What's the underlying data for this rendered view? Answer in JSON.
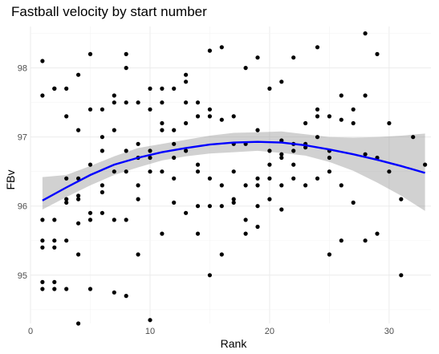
{
  "chart_data": {
    "type": "scatter",
    "title": "Fastball velocity by start number",
    "xlabel": "Rank",
    "ylabel": "FBv",
    "xlim": [
      0,
      33.5
    ],
    "ylim": [
      94.3,
      98.6
    ],
    "x_ticks": [
      0,
      10,
      20,
      30
    ],
    "y_ticks": [
      95,
      96,
      97,
      98
    ],
    "grid": true,
    "legend": "none",
    "colors": {
      "points": "#000000",
      "smooth_line": "#0000ff",
      "ribbon": "#999999"
    },
    "points": [
      [
        1,
        98.1
      ],
      [
        1,
        97.6
      ],
      [
        1,
        95.8
      ],
      [
        1,
        95.5
      ],
      [
        1,
        95.4
      ],
      [
        1,
        94.9
      ],
      [
        1,
        94.8
      ],
      [
        2,
        97.7
      ],
      [
        2,
        97.7
      ],
      [
        2,
        95.8
      ],
      [
        2,
        95.5
      ],
      [
        2,
        95.4
      ],
      [
        2,
        94.9
      ],
      [
        2,
        94.8
      ],
      [
        3,
        97.7
      ],
      [
        3,
        97.3
      ],
      [
        3,
        96.4
      ],
      [
        3,
        96.1
      ],
      [
        3,
        96.05
      ],
      [
        3,
        95.5
      ],
      [
        3,
        94.8
      ],
      [
        4,
        97.9
      ],
      [
        4,
        97.1
      ],
      [
        4,
        96.4
      ],
      [
        4,
        96.15
      ],
      [
        4,
        96.1
      ],
      [
        4,
        95.75
      ],
      [
        4,
        95.3
      ],
      [
        4,
        94.3
      ],
      [
        5,
        98.2
      ],
      [
        5,
        97.4
      ],
      [
        5,
        96.6
      ],
      [
        5,
        95.9
      ],
      [
        5,
        95.8
      ],
      [
        5,
        94.8
      ],
      [
        6,
        97.4
      ],
      [
        6,
        97.0
      ],
      [
        6,
        96.8
      ],
      [
        6,
        96.3
      ],
      [
        6,
        96.2
      ],
      [
        6,
        95.9
      ],
      [
        7,
        97.6
      ],
      [
        7,
        97.5
      ],
      [
        7,
        97.1
      ],
      [
        7,
        96.5
      ],
      [
        7,
        95.8
      ],
      [
        7,
        94.75
      ],
      [
        8,
        98.2
      ],
      [
        8,
        98.0
      ],
      [
        8,
        97.5
      ],
      [
        8,
        96.8
      ],
      [
        8,
        96.5
      ],
      [
        8,
        95.8
      ],
      [
        8,
        94.7
      ],
      [
        9,
        97.5
      ],
      [
        9,
        96.9
      ],
      [
        9,
        96.7
      ],
      [
        9,
        96.3
      ],
      [
        9,
        96.1
      ],
      [
        9,
        95.3
      ],
      [
        10,
        97.7
      ],
      [
        10,
        97.4
      ],
      [
        10,
        96.8
      ],
      [
        10,
        96.7
      ],
      [
        10,
        96.5
      ],
      [
        10,
        94.35
      ],
      [
        11,
        97.7
      ],
      [
        11,
        97.5
      ],
      [
        11,
        97.2
      ],
      [
        11,
        97.1
      ],
      [
        11,
        96.5
      ],
      [
        11,
        95.6
      ],
      [
        12,
        97.7
      ],
      [
        12,
        97.1
      ],
      [
        12,
        96.9
      ],
      [
        12,
        96.7
      ],
      [
        12,
        96.4
      ],
      [
        12,
        96.05
      ],
      [
        13,
        97.9
      ],
      [
        13,
        97.8
      ],
      [
        13,
        97.5
      ],
      [
        13,
        97.2
      ],
      [
        13,
        96.8
      ],
      [
        13,
        95.9
      ],
      [
        14,
        97.5
      ],
      [
        14,
        97.3
      ],
      [
        14,
        96.6
      ],
      [
        14,
        96.5
      ],
      [
        14,
        96.0
      ],
      [
        14,
        95.6
      ],
      [
        15,
        98.25
      ],
      [
        15,
        97.4
      ],
      [
        15,
        97.3
      ],
      [
        15,
        96.4
      ],
      [
        15,
        96.0
      ],
      [
        15,
        95.0
      ],
      [
        16,
        98.3
      ],
      [
        16,
        97.25
      ],
      [
        16,
        96.3
      ],
      [
        16,
        96.0
      ],
      [
        16,
        95.3
      ],
      [
        17,
        97.3
      ],
      [
        17,
        96.9
      ],
      [
        17,
        96.5
      ],
      [
        17,
        96.1
      ],
      [
        17,
        96.05
      ],
      [
        18,
        98.0
      ],
      [
        18,
        96.9
      ],
      [
        18,
        96.3
      ],
      [
        18,
        95.8
      ],
      [
        18,
        95.6
      ],
      [
        19,
        98.15
      ],
      [
        19,
        97.1
      ],
      [
        19,
        96.4
      ],
      [
        19,
        96.3
      ],
      [
        19,
        96.0
      ],
      [
        19,
        95.7
      ],
      [
        20,
        97.7
      ],
      [
        20,
        96.8
      ],
      [
        20,
        96.6
      ],
      [
        20,
        96.4
      ],
      [
        20,
        96.1
      ],
      [
        21,
        97.8
      ],
      [
        21,
        96.95
      ],
      [
        21,
        96.75
      ],
      [
        21,
        96.7
      ],
      [
        21,
        96.3
      ],
      [
        21,
        95.95
      ],
      [
        22,
        98.15
      ],
      [
        22,
        96.9
      ],
      [
        22,
        96.8
      ],
      [
        22,
        96.6
      ],
      [
        22,
        96.4
      ],
      [
        23,
        97.2
      ],
      [
        23,
        96.9
      ],
      [
        23,
        96.85
      ],
      [
        23,
        96.3
      ],
      [
        24,
        98.3
      ],
      [
        24,
        97.4
      ],
      [
        24,
        97.3
      ],
      [
        24,
        97.0
      ],
      [
        24,
        96.4
      ],
      [
        25,
        97.3
      ],
      [
        25,
        96.8
      ],
      [
        25,
        96.7
      ],
      [
        25,
        96.5
      ],
      [
        25,
        95.3
      ],
      [
        26,
        97.6
      ],
      [
        26,
        97.25
      ],
      [
        26,
        96.3
      ],
      [
        26,
        95.5
      ],
      [
        27,
        97.4
      ],
      [
        27,
        97.2
      ],
      [
        27,
        96.05
      ],
      [
        28,
        98.5
      ],
      [
        28,
        97.6
      ],
      [
        28,
        96.75
      ],
      [
        28,
        95.5
      ],
      [
        29,
        98.2
      ],
      [
        29,
        96.7
      ],
      [
        29,
        95.6
      ],
      [
        30,
        97.2
      ],
      [
        30,
        96.5
      ],
      [
        31,
        96.1
      ],
      [
        31,
        95.0
      ],
      [
        32,
        97.0
      ],
      [
        33,
        96.6
      ]
    ],
    "smooth": {
      "method": "loess",
      "x": [
        1,
        3,
        5,
        7,
        9,
        11,
        13,
        15,
        17,
        19,
        21,
        23,
        25,
        27,
        29,
        31,
        33
      ],
      "y": [
        96.08,
        96.27,
        96.45,
        96.6,
        96.7,
        96.78,
        96.84,
        96.89,
        96.92,
        96.93,
        96.92,
        96.88,
        96.82,
        96.75,
        96.67,
        96.58,
        96.48
      ],
      "lower": [
        95.95,
        96.13,
        96.3,
        96.45,
        96.56,
        96.66,
        96.72,
        96.76,
        96.78,
        96.8,
        96.77,
        96.73,
        96.64,
        96.51,
        96.34,
        96.15,
        95.93
      ],
      "upper": [
        96.42,
        96.45,
        96.58,
        96.72,
        96.84,
        96.9,
        96.96,
        97.02,
        97.06,
        97.07,
        97.08,
        97.04,
        97.0,
        96.99,
        97.0,
        97.02,
        97.05
      ]
    }
  }
}
